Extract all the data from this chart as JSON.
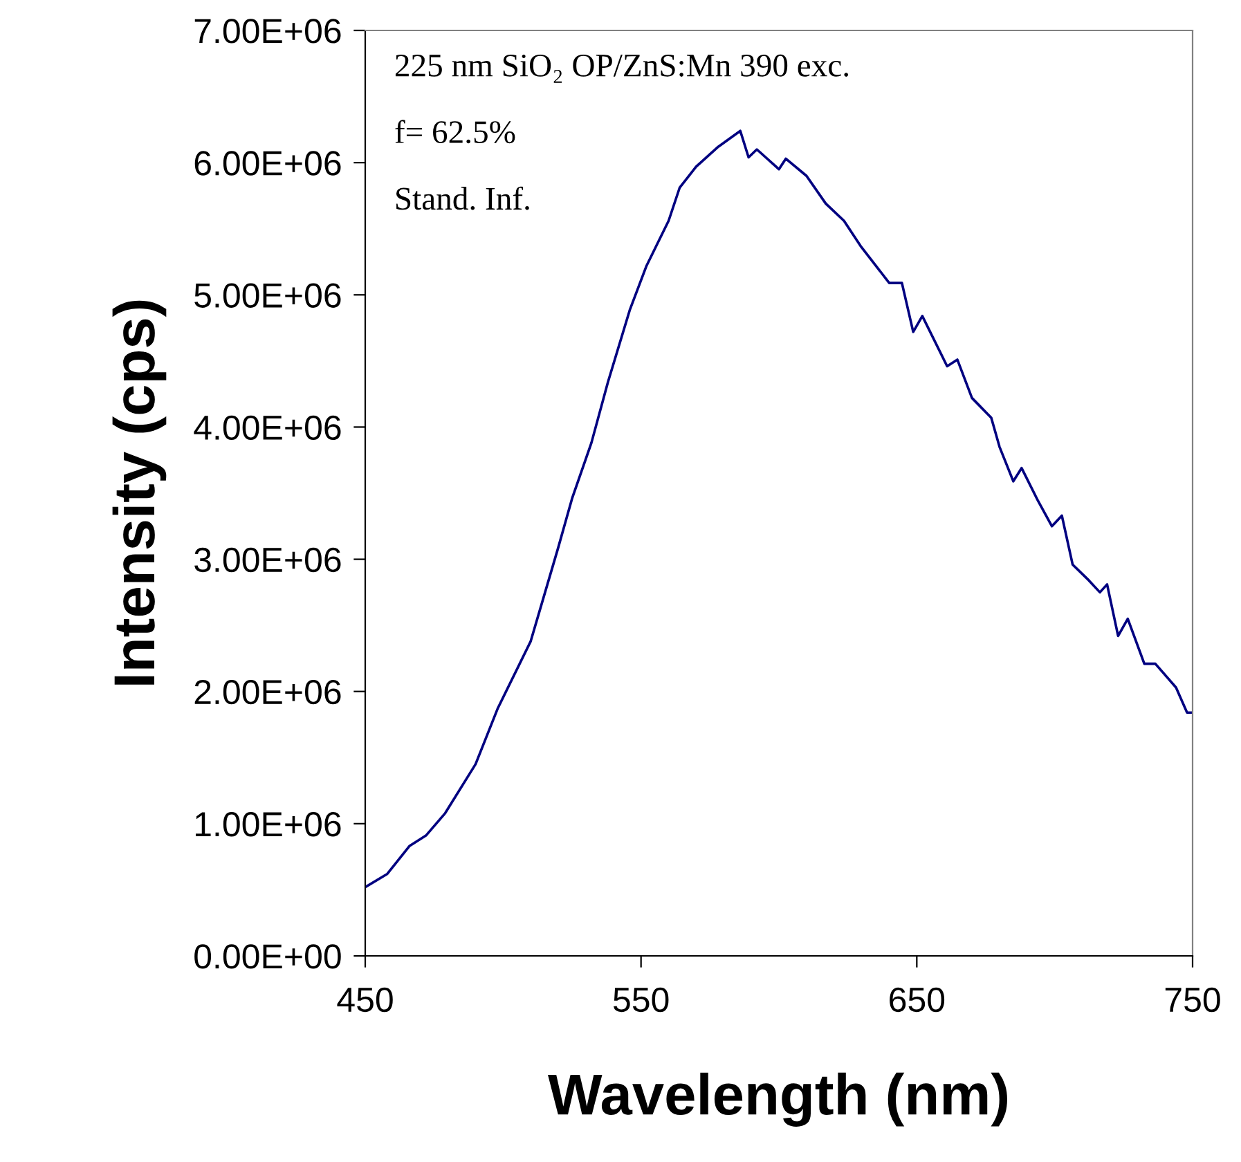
{
  "chart_data": {
    "type": "line",
    "xlabel": "Wavelength (nm)",
    "ylabel": "Intensity (cps)",
    "annotations": [
      "225 nm SiO₂ OP/ZnS:Mn 390 exc.",
      "f= 62.5%",
      "Stand. Inf."
    ],
    "xlim": [
      450,
      750
    ],
    "xticks": [
      450,
      550,
      650,
      750
    ],
    "ylim": [
      0,
      7000000
    ],
    "yticks": [
      {
        "value": 0,
        "label": "0.00E+00"
      },
      {
        "value": 1000000,
        "label": "1.00E+06"
      },
      {
        "value": 2000000,
        "label": "2.00E+06"
      },
      {
        "value": 3000000,
        "label": "3.00E+06"
      },
      {
        "value": 4000000,
        "label": "4.00E+06"
      },
      {
        "value": 5000000,
        "label": "5.00E+06"
      },
      {
        "value": 6000000,
        "label": "6.00E+06"
      },
      {
        "value": 7000000,
        "label": "7.00E+06"
      }
    ],
    "grid": false,
    "legend": false,
    "marker": "none",
    "line_style": "solid",
    "series": [
      {
        "color": "#000080",
        "x": [
          450,
          458,
          466,
          472,
          479,
          490,
          498,
          510,
          520,
          525,
          532,
          538,
          546,
          552,
          560,
          564,
          570,
          578,
          586,
          589,
          592,
          600,
          602.5,
          610,
          617,
          623.6,
          629.6,
          640,
          644.6,
          648.7,
          652,
          661,
          664.7,
          670,
          677,
          680,
          685,
          688,
          694,
          699,
          702.6,
          706.5,
          712.4,
          716.4,
          719,
          723,
          726.5,
          732.5,
          736.5,
          744,
          748,
          750
        ],
        "values": [
          520000,
          620000,
          830000,
          910000,
          1080000,
          1450000,
          1870000,
          2380000,
          3090000,
          3460000,
          3880000,
          4340000,
          4890000,
          5220000,
          5560000,
          5810000,
          5970000,
          6120000,
          6240000,
          6040000,
          6100000,
          5950000,
          6030000,
          5900000,
          5690000,
          5560000,
          5370000,
          5090000,
          5090000,
          4720000,
          4840000,
          4460000,
          4510000,
          4220000,
          4070000,
          3850000,
          3590000,
          3690000,
          3440000,
          3250000,
          3330000,
          2960000,
          2840000,
          2750000,
          2810000,
          2420000,
          2550000,
          2210000,
          2210000,
          2030000,
          1840000,
          1840000
        ]
      }
    ]
  }
}
